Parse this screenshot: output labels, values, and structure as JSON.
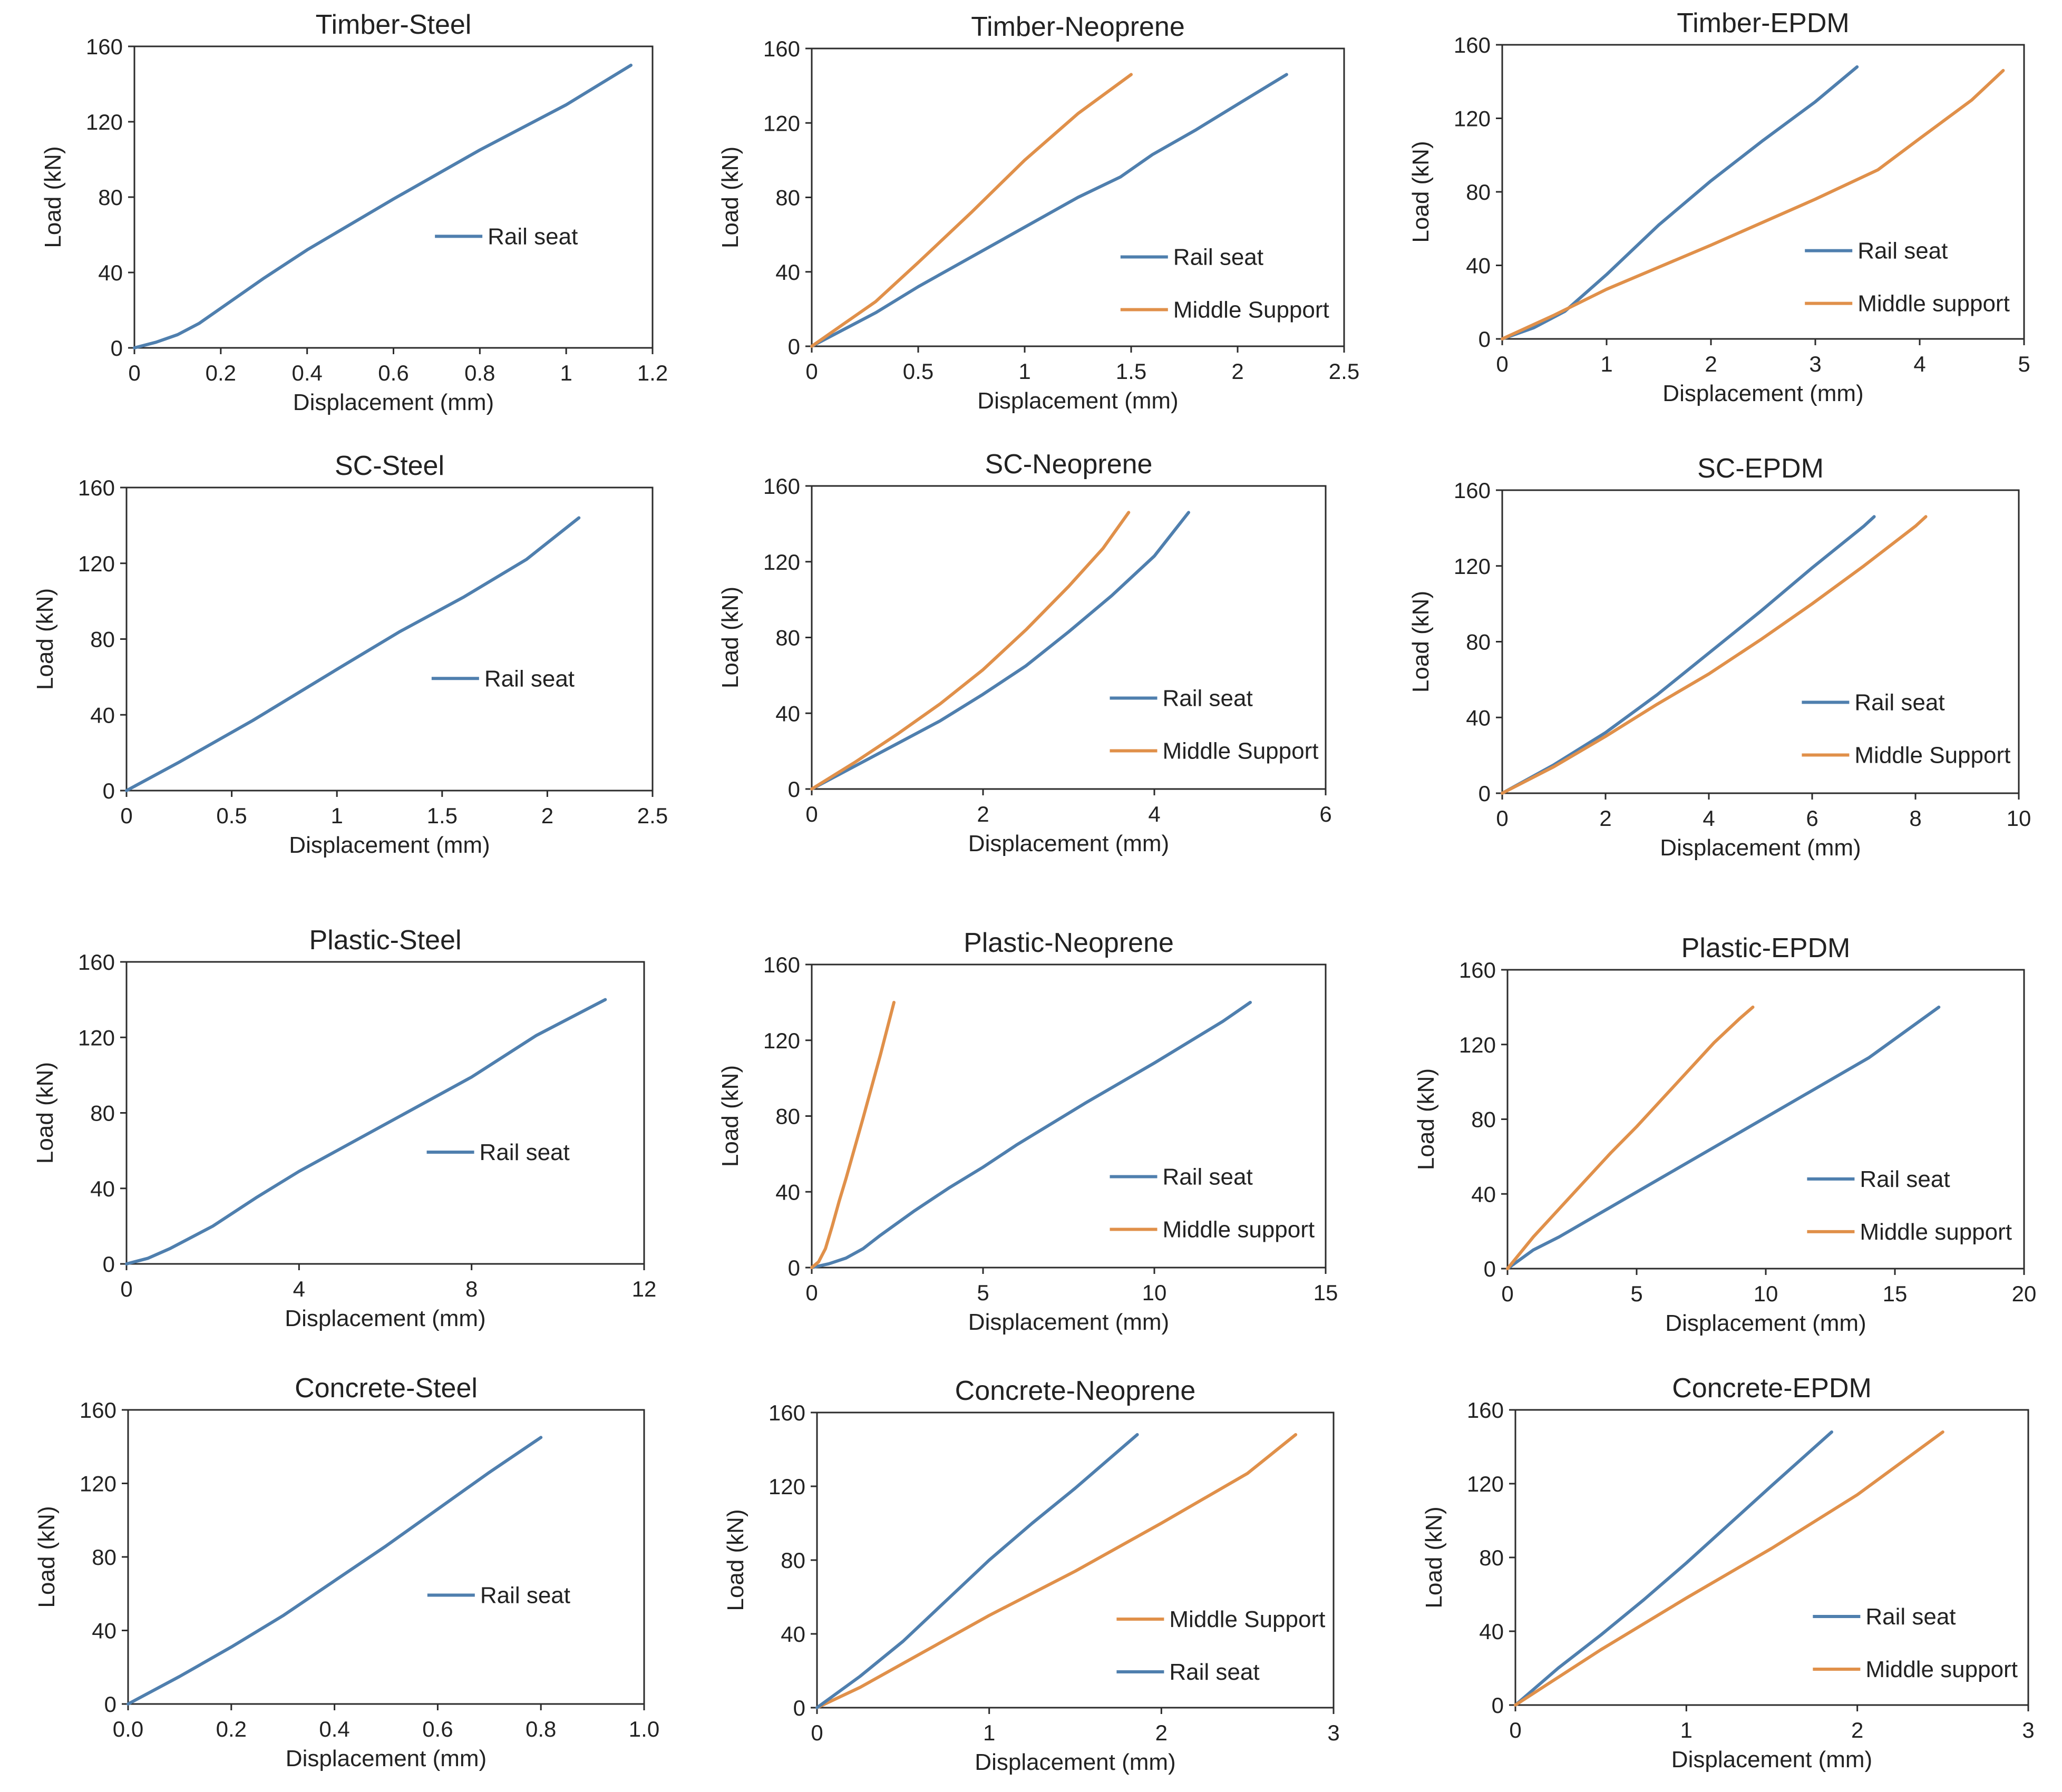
{
  "figure": {
    "colors": {
      "rail_seat": "#4f7fae",
      "middle_support": "#e0904a"
    }
  },
  "chart_data": [
    {
      "id": "timber-steel",
      "type": "line",
      "title": "Timber-Steel",
      "xlabel": "Displacement (mm)",
      "ylabel": "Load (kN)",
      "xlim": [
        0,
        1.2
      ],
      "ylim": [
        0,
        160
      ],
      "grid": false,
      "xticks": [
        "0",
        "0.2",
        "0.4",
        "0.6",
        "0.8",
        "1",
        "1.2"
      ],
      "yticks": [
        "0",
        "40",
        "80",
        "120",
        "160"
      ],
      "legend_position": "center-right",
      "series": [
        {
          "name": "Rail seat",
          "color": "#4f7fae",
          "x": [
            0,
            0.05,
            0.1,
            0.15,
            0.2,
            0.3,
            0.4,
            0.6,
            0.8,
            1.0,
            1.15
          ],
          "y": [
            0,
            3,
            7,
            13,
            21,
            37,
            52,
            79,
            105,
            129,
            150
          ]
        }
      ]
    },
    {
      "id": "timber-neoprene",
      "type": "line",
      "title": "Timber-Neoprene",
      "xlabel": "Displacement (mm)",
      "ylabel": "Load (kN)",
      "xlim": [
        0,
        2.5
      ],
      "ylim": [
        0,
        160
      ],
      "grid": false,
      "xticks": [
        "0",
        "0.5",
        "1",
        "1.5",
        "2",
        "2.5"
      ],
      "yticks": [
        "0",
        "40",
        "80",
        "120",
        "160"
      ],
      "legend_position": "bottom-right",
      "series": [
        {
          "name": "Rail seat",
          "color": "#4f7fae",
          "x": [
            0,
            0.15,
            0.3,
            0.5,
            0.75,
            1.0,
            1.25,
            1.45,
            1.6,
            1.8,
            2.0,
            2.23
          ],
          "y": [
            0,
            9,
            18,
            32,
            48,
            64,
            80,
            91,
            103,
            116,
            130,
            146
          ]
        },
        {
          "name": "Middle Support",
          "color": "#e0904a",
          "x": [
            0,
            0.15,
            0.3,
            0.5,
            0.75,
            1.0,
            1.25,
            1.5
          ],
          "y": [
            0,
            12,
            24,
            45,
            72,
            100,
            125,
            146
          ]
        }
      ]
    },
    {
      "id": "timber-epdm",
      "type": "line",
      "title": "Timber-EPDM",
      "xlabel": "Displacement (mm)",
      "ylabel": "Load (kN)",
      "xlim": [
        0,
        5
      ],
      "ylim": [
        0,
        160
      ],
      "grid": false,
      "xticks": [
        "0",
        "1",
        "2",
        "3",
        "4",
        "5"
      ],
      "yticks": [
        "0",
        "40",
        "80",
        "120",
        "160"
      ],
      "legend_position": "bottom-right",
      "series": [
        {
          "name": "Rail seat",
          "color": "#4f7fae",
          "x": [
            0,
            0.3,
            0.6,
            1.0,
            1.5,
            2.0,
            2.5,
            3.0,
            3.4
          ],
          "y": [
            0,
            6,
            15,
            35,
            62,
            86,
            108,
            129,
            148
          ]
        },
        {
          "name": "Middle support",
          "color": "#e0904a",
          "x": [
            0,
            0.5,
            1.0,
            2.0,
            3.0,
            3.6,
            4.0,
            4.5,
            4.8
          ],
          "y": [
            0,
            13,
            27,
            51,
            76,
            92,
            109,
            130,
            146
          ]
        }
      ]
    },
    {
      "id": "sc-steel",
      "type": "line",
      "title": "SC-Steel",
      "xlabel": "Displacement (mm)",
      "ylabel": "Load (kN)",
      "xlim": [
        0,
        2.5
      ],
      "ylim": [
        0,
        160
      ],
      "grid": false,
      "xticks": [
        "0",
        "0.5",
        "1",
        "1.5",
        "2",
        "2.5"
      ],
      "yticks": [
        "0",
        "40",
        "80",
        "120",
        "160"
      ],
      "legend_position": "center-right",
      "series": [
        {
          "name": "Rail seat",
          "color": "#4f7fae",
          "x": [
            0,
            0.25,
            0.6,
            1.0,
            1.3,
            1.6,
            1.9,
            2.15
          ],
          "y": [
            0,
            15,
            37,
            64,
            84,
            102,
            122,
            144
          ]
        }
      ]
    },
    {
      "id": "sc-neoprene",
      "type": "line",
      "title": "SC-Neoprene",
      "xlabel": "Displacement (mm)",
      "ylabel": "Load (kN)",
      "xlim": [
        0,
        6
      ],
      "ylim": [
        0,
        160
      ],
      "grid": false,
      "xticks": [
        "0",
        "2",
        "4",
        "6"
      ],
      "yticks": [
        "0",
        "40",
        "80",
        "120",
        "160"
      ],
      "legend_position": "bottom-right",
      "series": [
        {
          "name": "Rail seat",
          "color": "#4f7fae",
          "x": [
            0,
            0.5,
            1.0,
            1.5,
            2.0,
            2.5,
            3.0,
            3.5,
            4.0,
            4.4
          ],
          "y": [
            0,
            12,
            24,
            36,
            50,
            65,
            83,
            102,
            123,
            146
          ]
        },
        {
          "name": "Middle Support",
          "color": "#e0904a",
          "x": [
            0,
            0.5,
            1.0,
            1.5,
            2.0,
            2.5,
            3.0,
            3.4,
            3.7
          ],
          "y": [
            0,
            14,
            29,
            45,
            63,
            84,
            107,
            127,
            146
          ]
        }
      ]
    },
    {
      "id": "sc-epdm",
      "type": "line",
      "title": "SC-EPDM",
      "xlabel": "Displacement (mm)",
      "ylabel": "Load (kN)",
      "xlim": [
        0,
        10
      ],
      "ylim": [
        0,
        160
      ],
      "grid": false,
      "xticks": [
        "0",
        "2",
        "4",
        "6",
        "8",
        "10"
      ],
      "yticks": [
        "0",
        "40",
        "80",
        "120",
        "160"
      ],
      "legend_position": "bottom-right",
      "series": [
        {
          "name": "Rail seat",
          "color": "#4f7fae",
          "x": [
            0,
            1,
            2,
            3,
            4,
            5,
            6,
            7,
            7.2
          ],
          "y": [
            0,
            15,
            32,
            52,
            74,
            96,
            119,
            141,
            146
          ]
        },
        {
          "name": "Middle Support",
          "color": "#e0904a",
          "x": [
            0,
            1,
            2,
            3,
            4,
            5,
            6,
            7,
            8,
            8.2
          ],
          "y": [
            0,
            14,
            30,
            47,
            63,
            81,
            100,
            120,
            141,
            146
          ]
        }
      ]
    },
    {
      "id": "plastic-steel",
      "type": "line",
      "title": "Plastic-Steel",
      "xlabel": "Displacement (mm)",
      "ylabel": "Load (kN)",
      "xlim": [
        0,
        12
      ],
      "ylim": [
        0,
        160
      ],
      "grid": false,
      "xticks": [
        "0",
        "4",
        "8",
        "12"
      ],
      "yticks": [
        "0",
        "40",
        "80",
        "120",
        "160"
      ],
      "legend_position": "center-right",
      "series": [
        {
          "name": "Rail seat",
          "color": "#4f7fae",
          "x": [
            0,
            0.5,
            1,
            2,
            3,
            4,
            6,
            8,
            9.5,
            11.1
          ],
          "y": [
            0,
            3,
            8,
            20,
            35,
            49,
            74,
            99,
            121,
            140
          ]
        }
      ]
    },
    {
      "id": "plastic-neoprene",
      "type": "line",
      "title": "Plastic-Neoprene",
      "xlabel": "Displacement (mm)",
      "ylabel": "Load (kN)",
      "xlim": [
        0,
        15
      ],
      "ylim": [
        0,
        160
      ],
      "grid": false,
      "xticks": [
        "0",
        "5",
        "10",
        "15"
      ],
      "yticks": [
        "0",
        "40",
        "80",
        "120",
        "160"
      ],
      "legend_position": "bottom-right",
      "series": [
        {
          "name": "Rail seat",
          "color": "#4f7fae",
          "x": [
            0,
            0.5,
            1,
            1.5,
            2,
            3,
            4,
            5,
            6,
            8,
            10,
            12,
            12.8
          ],
          "y": [
            0,
            2,
            5,
            10,
            17,
            30,
            42,
            53,
            65,
            87,
            108,
            130,
            140
          ]
        },
        {
          "name": "Middle support",
          "color": "#e0904a",
          "x": [
            0,
            0.2,
            0.4,
            0.6,
            0.8,
            1.0,
            1.5,
            2.0,
            2.4
          ],
          "y": [
            0,
            3,
            10,
            22,
            35,
            47,
            79,
            112,
            140
          ]
        }
      ]
    },
    {
      "id": "plastic-epdm",
      "type": "line",
      "title": "Plastic-EPDM",
      "xlabel": "Displacement (mm)",
      "ylabel": "Load (kN)",
      "xlim": [
        0,
        20
      ],
      "ylim": [
        0,
        160
      ],
      "grid": false,
      "xticks": [
        "0",
        "5",
        "10",
        "15",
        "20"
      ],
      "yticks": [
        "0",
        "40",
        "80",
        "120",
        "160"
      ],
      "legend_position": "bottom-right",
      "series": [
        {
          "name": "Rail seat",
          "color": "#4f7fae",
          "x": [
            0,
            0.5,
            1,
            2,
            4,
            6,
            8,
            10,
            12,
            14,
            16.7
          ],
          "y": [
            0,
            5,
            10,
            17,
            33,
            49,
            65,
            81,
            97,
            113,
            140
          ]
        },
        {
          "name": "Middle support",
          "color": "#e0904a",
          "x": [
            0,
            1,
            2,
            3,
            4,
            5,
            6,
            7,
            8,
            9,
            9.5
          ],
          "y": [
            0,
            17,
            32,
            47,
            62,
            76,
            91,
            106,
            121,
            134,
            140
          ]
        }
      ]
    },
    {
      "id": "concrete-steel",
      "type": "line",
      "title": "Concrete-Steel",
      "xlabel": "Displacement (mm)",
      "ylabel": "Load (kN)",
      "xlim": [
        0,
        1.0
      ],
      "ylim": [
        0,
        160
      ],
      "grid": false,
      "xticks": [
        "0.0",
        "0.2",
        "0.4",
        "0.6",
        "0.8",
        "1.0"
      ],
      "yticks": [
        "0",
        "40",
        "80",
        "120",
        "160"
      ],
      "legend_position": "bottom-right",
      "series": [
        {
          "name": "Rail seat",
          "color": "#4f7fae",
          "x": [
            0,
            0.1,
            0.2,
            0.3,
            0.4,
            0.5,
            0.6,
            0.7,
            0.8
          ],
          "y": [
            0,
            15,
            31,
            48,
            67,
            86,
            106,
            126,
            145
          ]
        }
      ]
    },
    {
      "id": "concrete-neoprene",
      "type": "line",
      "title": "Concrete-Neoprene",
      "xlabel": "Displacement (mm)",
      "ylabel": "Load (kN)",
      "xlim": [
        0,
        3
      ],
      "ylim": [
        0,
        160
      ],
      "grid": false,
      "xticks": [
        "0",
        "1",
        "2",
        "3"
      ],
      "yticks": [
        "0",
        "40",
        "80",
        "120",
        "160"
      ],
      "legend_position": "bottom-right",
      "series": [
        {
          "name": "Middle Support",
          "color": "#e0904a",
          "x": [
            0,
            0.25,
            0.5,
            1.0,
            1.5,
            2.0,
            2.5,
            2.78
          ],
          "y": [
            0,
            11,
            24,
            50,
            74,
            100,
            127,
            148
          ]
        },
        {
          "name": "Rail seat",
          "color": "#4f7fae",
          "x": [
            0,
            0.25,
            0.5,
            0.75,
            1.0,
            1.25,
            1.5,
            1.86
          ],
          "y": [
            0,
            17,
            36,
            58,
            80,
            100,
            119,
            148
          ]
        }
      ]
    },
    {
      "id": "concrete-epdm",
      "type": "line",
      "title": "Concrete-EPDM",
      "xlabel": "Displacement (mm)",
      "ylabel": "Load (kN)",
      "xlim": [
        0,
        3
      ],
      "ylim": [
        0,
        160
      ],
      "grid": false,
      "xticks": [
        "0",
        "1",
        "2",
        "3"
      ],
      "yticks": [
        "0",
        "40",
        "80",
        "120",
        "160"
      ],
      "legend_position": "bottom-right",
      "series": [
        {
          "name": "Rail seat",
          "color": "#4f7fae",
          "x": [
            0,
            0.25,
            0.5,
            0.75,
            1.0,
            1.25,
            1.5,
            1.85
          ],
          "y": [
            0,
            20,
            38,
            57,
            77,
            98,
            119,
            148
          ]
        },
        {
          "name": "Middle support",
          "color": "#e0904a",
          "x": [
            0,
            0.5,
            1.0,
            1.5,
            2.0,
            2.5
          ],
          "y": [
            0,
            30,
            58,
            85,
            114,
            148
          ]
        }
      ]
    }
  ]
}
